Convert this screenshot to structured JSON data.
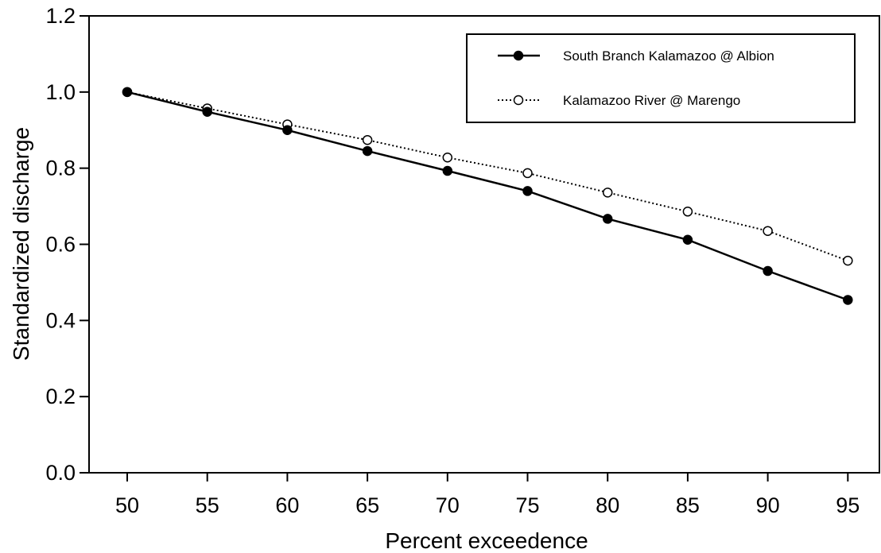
{
  "chart_data": {
    "type": "line",
    "xlabel": "Percent exceedence",
    "ylabel": "Standardized discharge",
    "x": [
      50,
      55,
      60,
      65,
      70,
      75,
      80,
      85,
      90,
      95
    ],
    "xticks": [
      "50",
      "55",
      "60",
      "65",
      "70",
      "75",
      "80",
      "85",
      "90",
      "95"
    ],
    "yticks": [
      "0.0",
      "0.2",
      "0.4",
      "0.6",
      "0.8",
      "1.0",
      "1.2"
    ],
    "ylim": [
      0,
      1.2
    ],
    "grid": false,
    "legend_position": "top-right",
    "series": [
      {
        "name": "South Branch Kalamazoo @ Albion",
        "line_style": "solid",
        "marker": "filled-circle",
        "values": [
          1.0,
          0.948,
          0.9,
          0.845,
          0.793,
          0.74,
          0.667,
          0.612,
          0.53,
          0.454
        ]
      },
      {
        "name": "Kalamazoo River @ Marengo",
        "line_style": "dotted",
        "marker": "open-circle",
        "values": [
          1.0,
          0.957,
          0.915,
          0.874,
          0.828,
          0.787,
          0.736,
          0.686,
          0.635,
          0.557
        ]
      }
    ]
  }
}
